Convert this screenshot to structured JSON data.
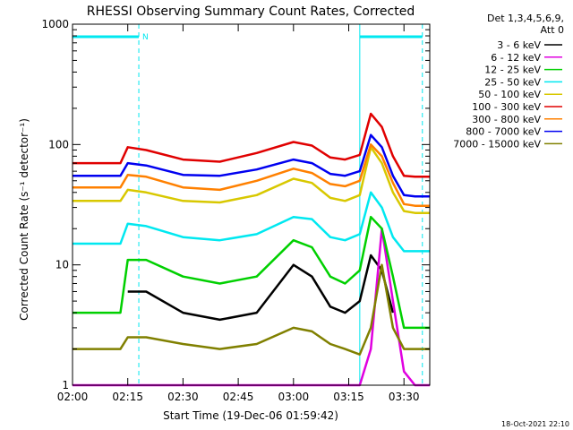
{
  "chart_data": {
    "type": "line",
    "title": "RHESSI Observing Summary Count Rates, Corrected",
    "xlabel": "Start Time (19-Dec-06 01:59:42)",
    "ylabel": "Corrected Count Rate (s⁻¹ detector⁻¹)",
    "y_scale": "log",
    "ylim": [
      1,
      1000
    ],
    "xlim": [
      "02:00",
      "03:37"
    ],
    "x_ticks": [
      "02:00",
      "02:15",
      "02:30",
      "02:45",
      "03:00",
      "03:15",
      "03:30"
    ],
    "y_ticks": [
      "1",
      "10",
      "100",
      "1000"
    ],
    "legend_header": [
      "Det 1,3,4,5,6,9,",
      "Att 0"
    ],
    "legend_position": "right",
    "footer_date": "18-Oct-2021 22:10",
    "attenuator_marker_label": "N",
    "x": [
      "02:00",
      "02:10",
      "02:13",
      "02:15",
      "02:20",
      "02:30",
      "02:40",
      "02:50",
      "03:00",
      "03:05",
      "03:10",
      "03:14",
      "03:18",
      "03:21",
      "03:24",
      "03:27",
      "03:30",
      "03:33",
      "03:37"
    ],
    "series": [
      {
        "name": "3 - 6 keV",
        "color": "#000000",
        "values": [
          null,
          null,
          null,
          6,
          6,
          4,
          3.5,
          4,
          10,
          8,
          4.5,
          4,
          5,
          12,
          9,
          4,
          null,
          null,
          null
        ]
      },
      {
        "name": "6 - 12 keV",
        "color": "#e000e0",
        "values": [
          1,
          1,
          1,
          1,
          1,
          1,
          1,
          1,
          1,
          1,
          1,
          1,
          1,
          2,
          20,
          5,
          1.3,
          1,
          1
        ]
      },
      {
        "name": "12 - 25 keV",
        "color": "#00d000",
        "values": [
          4,
          4,
          4,
          11,
          11,
          8,
          7,
          8,
          16,
          14,
          8,
          7,
          9,
          25,
          20,
          8,
          3,
          3,
          3
        ]
      },
      {
        "name": "25 - 50 keV",
        "color": "#00e8f0",
        "values": [
          15,
          15,
          15,
          22,
          21,
          17,
          16,
          18,
          25,
          24,
          17,
          16,
          18,
          40,
          30,
          17,
          13,
          13,
          13
        ]
      },
      {
        "name": "50 - 100 keV",
        "color": "#d8c800",
        "values": [
          34,
          34,
          34,
          42,
          40,
          34,
          33,
          38,
          52,
          48,
          36,
          34,
          38,
          95,
          70,
          40,
          28,
          27,
          27
        ]
      },
      {
        "name": "100 - 300 keV",
        "color": "#e00000",
        "values": [
          70,
          70,
          70,
          95,
          90,
          75,
          72,
          85,
          105,
          98,
          78,
          75,
          82,
          180,
          140,
          80,
          55,
          54,
          54
        ]
      },
      {
        "name": "300 - 800 keV",
        "color": "#ff8000",
        "values": [
          44,
          44,
          44,
          56,
          54,
          44,
          42,
          50,
          63,
          58,
          47,
          45,
          50,
          100,
          80,
          48,
          32,
          31,
          31
        ]
      },
      {
        "name": "800 - 7000 keV",
        "color": "#0000f0",
        "values": [
          55,
          55,
          55,
          70,
          67,
          56,
          55,
          62,
          75,
          70,
          57,
          55,
          60,
          120,
          95,
          55,
          38,
          37,
          37
        ]
      },
      {
        "name": "7000 - 15000 keV",
        "color": "#808000",
        "values": [
          2,
          2,
          2,
          2.5,
          2.5,
          2.2,
          2,
          2.2,
          3,
          2.8,
          2.2,
          2,
          1.8,
          3,
          10,
          3,
          2,
          2,
          2
        ]
      }
    ]
  }
}
